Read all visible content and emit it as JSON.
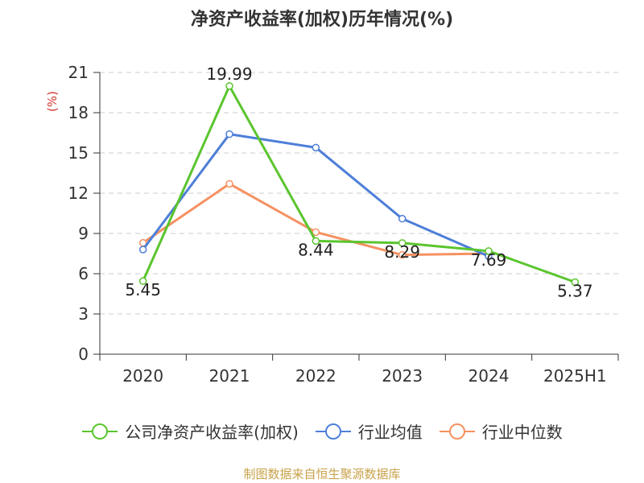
{
  "title": "净资产收益率(加权)历年情况(%)",
  "source": "制图数据来自恒生聚源数据库",
  "colors": {
    "company": "#5ac52e",
    "industry_avg": "#4e7fd9",
    "industry_median": "#f59161"
  },
  "chart_data": {
    "type": "line",
    "title": "净资产收益率(加权)历年情况(%)",
    "ylabel": "(%)",
    "ylim": [
      0,
      21
    ],
    "yticks": [
      0,
      3,
      6,
      9,
      12,
      15,
      18,
      21
    ],
    "categories": [
      "2020",
      "2021",
      "2022",
      "2023",
      "2024",
      "2025H1"
    ],
    "grid": "horizontal-dashed",
    "legend_position": "bottom",
    "series": [
      {
        "name": "公司净资产收益率(加权)",
        "color": "#5ac52e",
        "values": [
          5.45,
          19.99,
          8.44,
          8.29,
          7.69,
          5.37
        ],
        "labels": [
          "5.45",
          "19.99",
          "8.44",
          "8.29",
          "7.69",
          "5.37"
        ]
      },
      {
        "name": "行业均值",
        "color": "#4e7fd9",
        "values": [
          7.8,
          16.4,
          15.4,
          10.1,
          7.3,
          null
        ]
      },
      {
        "name": "行业中位数",
        "color": "#f59161",
        "values": [
          8.3,
          12.7,
          9.1,
          7.4,
          7.5,
          null
        ]
      }
    ]
  }
}
